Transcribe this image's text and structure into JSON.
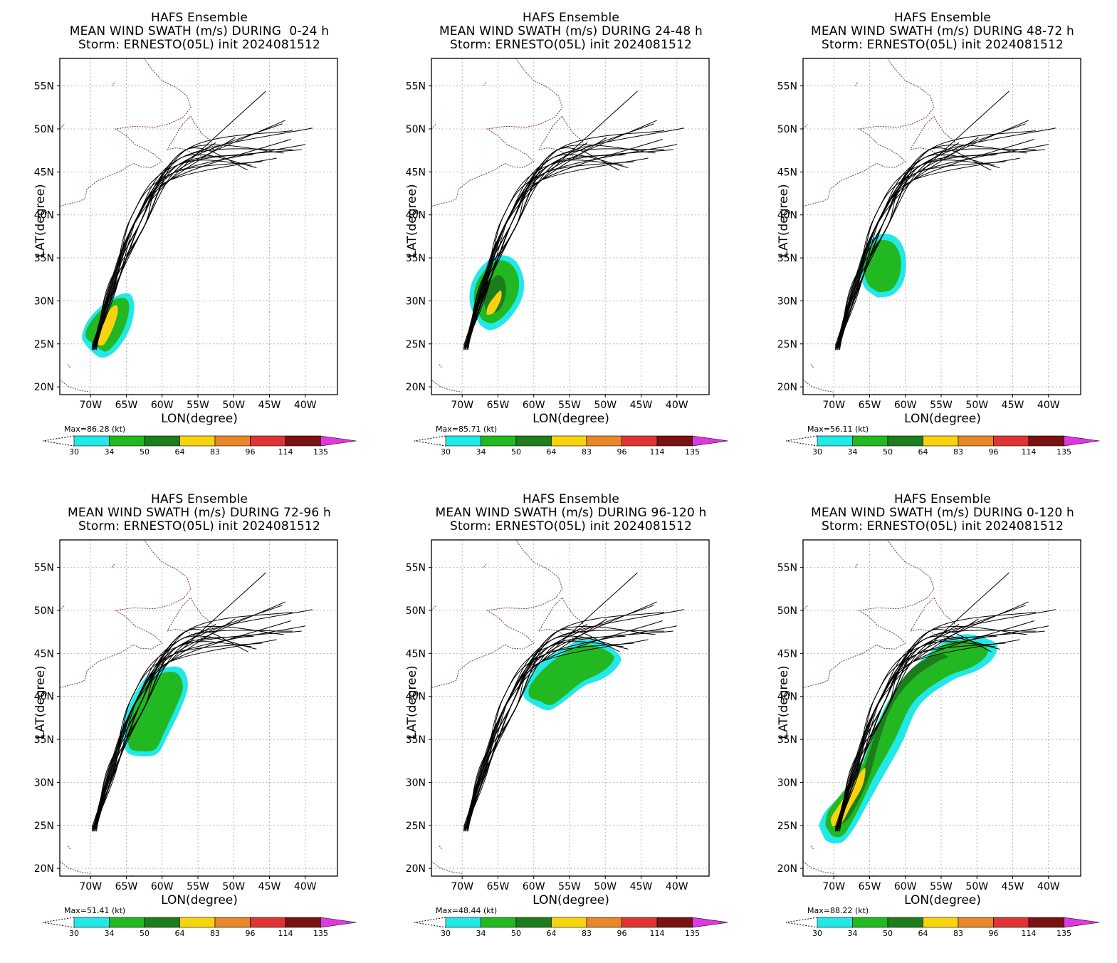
{
  "lat_ticks": [
    "55N",
    "50N",
    "45N",
    "40N",
    "35N",
    "30N",
    "25N",
    "20N"
  ],
  "lon_ticks": [
    "70W",
    "65W",
    "60W",
    "55W",
    "50W",
    "45W",
    "40W"
  ],
  "x_axis_label": "LON(degree)",
  "y_axis_label": "LAT(degree)",
  "colorbar": {
    "levels": [
      "30",
      "34",
      "50",
      "64",
      "83",
      "96",
      "114",
      "135"
    ],
    "colors": [
      "#22e8e8",
      "#22b822",
      "#1c7d1c",
      "#f7d40d",
      "#e8862a",
      "#e03434",
      "#7a1212",
      "#e038e0"
    ]
  },
  "panels": [
    {
      "line1": "HAFS Ensemble",
      "line2": "MEAN WIND SWATH (m/s) DURING  0-24 h",
      "line3": "Storm: ERNESTO(05L) init 2024081512",
      "max": "Max=86.28 (kt)",
      "swath": "s0"
    },
    {
      "line1": "HAFS Ensemble",
      "line2": "MEAN WIND SWATH (m/s) DURING 24-48 h",
      "line3": "Storm: ERNESTO(05L) init 2024081512",
      "max": "Max=85.71 (kt)",
      "swath": "s1"
    },
    {
      "line1": "HAFS Ensemble",
      "line2": "MEAN WIND SWATH (m/s) DURING 48-72 h",
      "line3": "Storm: ERNESTO(05L) init 2024081512",
      "max": "Max=56.11 (kt)",
      "swath": "s2"
    },
    {
      "line1": "HAFS Ensemble",
      "line2": "MEAN WIND SWATH (m/s) DURING 72-96 h",
      "line3": "Storm: ERNESTO(05L) init 2024081512",
      "max": "Max=51.41 (kt)",
      "swath": "s3"
    },
    {
      "line1": "HAFS Ensemble",
      "line2": "MEAN WIND SWATH (m/s) DURING 96-120 h",
      "line3": "Storm: ERNESTO(05L) init 2024081512",
      "max": "Max=48.44 (kt)",
      "swath": "s4"
    },
    {
      "line1": "HAFS Ensemble",
      "line2": "MEAN WIND SWATH (m/s) DURING 0-120 h",
      "line3": "Storm: ERNESTO(05L) init 2024081512",
      "max": "Max=88.22 (kt)",
      "swath": "s5"
    }
  ]
}
